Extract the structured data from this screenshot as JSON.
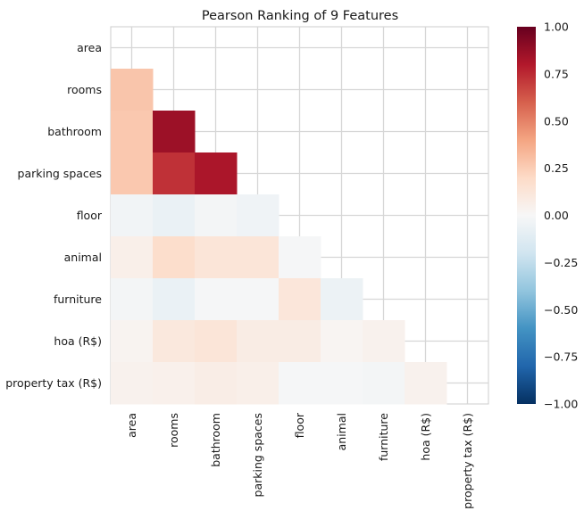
{
  "chart_data": {
    "type": "heatmap",
    "title": "Pearson Ranking of 9 Features",
    "xlabel": "",
    "ylabel": "",
    "features": [
      "area",
      "rooms",
      "bathroom",
      "parking spaces",
      "floor",
      "animal",
      "furniture",
      "hoa (R$)",
      "property tax (R$)"
    ],
    "colorbar": {
      "range": [
        -1.0,
        1.0
      ],
      "ticks": [
        "1.00",
        "0.75",
        "0.50",
        "0.25",
        "0.00",
        "−0.25",
        "−0.50",
        "−0.75",
        "−1.00"
      ],
      "tick_values": [
        1.0,
        0.75,
        0.5,
        0.25,
        0.0,
        -0.25,
        -0.5,
        -0.75,
        -1.0
      ],
      "colormap": "RdBu_r"
    },
    "grid": true,
    "lower_triangle": [
      {
        "row": "rooms",
        "values": [
          0.28
        ]
      },
      {
        "row": "bathroom",
        "values": [
          0.27,
          0.86
        ]
      },
      {
        "row": "parking spaces",
        "values": [
          0.27,
          0.73,
          0.82
        ]
      },
      {
        "row": "floor",
        "values": [
          -0.03,
          -0.07,
          -0.02,
          -0.04
        ]
      },
      {
        "row": "animal",
        "values": [
          0.06,
          0.18,
          0.13,
          0.13,
          -0.01
        ]
      },
      {
        "row": "furniture",
        "values": [
          -0.02,
          -0.07,
          -0.01,
          -0.01,
          0.12,
          -0.06
        ]
      },
      {
        "row": "hoa (R$)",
        "values": [
          0.03,
          0.11,
          0.13,
          0.08,
          0.08,
          0.02,
          0.04
        ]
      },
      {
        "row": "property tax (R$)",
        "values": [
          0.04,
          0.05,
          0.07,
          0.06,
          -0.01,
          -0.01,
          -0.02,
          0.04
        ]
      }
    ]
  }
}
